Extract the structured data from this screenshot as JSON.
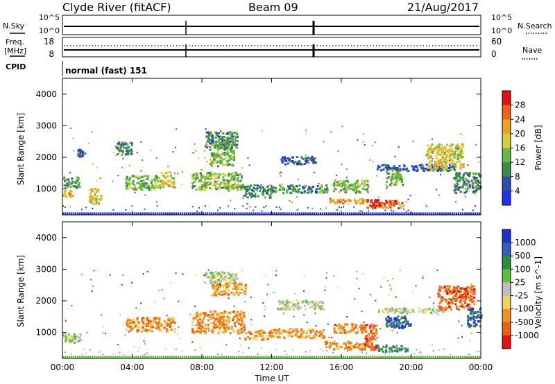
{
  "header": {
    "station": "Clyde River (fitACF)",
    "beam": "Beam 09",
    "date": "21/Aug/2017"
  },
  "status_panels": {
    "nsky_label": "N.Sky",
    "nsky_ticks": [
      "10^5",
      "10^0"
    ],
    "nsearch_label": "N.Search",
    "nsearch_ticks": [
      "10^5",
      "10^0"
    ],
    "freq_label": "Freq.",
    "freq_unit": "[MHz]",
    "freq_ticks": [
      "18",
      "8"
    ],
    "nave_label": "Nave",
    "nave_ticks": [
      "60",
      "0"
    ],
    "cpid_label": "CPID",
    "cpid_value": "normal (fast) 151"
  },
  "chart_data": [
    {
      "type": "heatmap",
      "name": "power",
      "ylabel": "Slant Range [km]",
      "ylim": [
        180,
        4500
      ],
      "yticks": [
        1000,
        2000,
        3000,
        4000
      ],
      "xlim": [
        0,
        24
      ],
      "colorbar_label": "Power [dB]",
      "colorbar_ticks": [
        "4",
        "8",
        "12",
        "16",
        "20",
        "24",
        "28"
      ],
      "colors": [
        "#1f2ff5",
        "#2a4fb0",
        "#3d8a4a",
        "#68b843",
        "#d7cf3a",
        "#f0a020",
        "#f06010",
        "#e21010"
      ],
      "regions": [
        {
          "t0": 0.0,
          "t1": 0.6,
          "r0": 780,
          "r1": 1000,
          "level": 5
        },
        {
          "t0": 0.0,
          "t1": 1.0,
          "r0": 1050,
          "r1": 1400,
          "level": 2
        },
        {
          "t0": 0.8,
          "t1": 1.3,
          "r0": 2050,
          "r1": 2300,
          "level": 1
        },
        {
          "t0": 1.5,
          "t1": 2.2,
          "r0": 550,
          "r1": 1050,
          "level": 4
        },
        {
          "t0": 3.0,
          "t1": 4.0,
          "r0": 2100,
          "r1": 2500,
          "level": 2
        },
        {
          "t0": 3.6,
          "t1": 5.6,
          "r0": 1000,
          "r1": 1450,
          "level": 3
        },
        {
          "t0": 5.6,
          "t1": 6.4,
          "r0": 1080,
          "r1": 1560,
          "level": 4
        },
        {
          "t0": 7.4,
          "t1": 10.3,
          "r0": 1000,
          "r1": 1550,
          "level": 3
        },
        {
          "t0": 8.4,
          "t1": 9.8,
          "r0": 1750,
          "r1": 2550,
          "level": 3
        },
        {
          "t0": 8.2,
          "t1": 10.0,
          "r0": 2300,
          "r1": 2850,
          "level": 2
        },
        {
          "t0": 10.3,
          "t1": 12.0,
          "r0": 750,
          "r1": 1150,
          "level": 2
        },
        {
          "t0": 12.5,
          "t1": 14.5,
          "r0": 1800,
          "r1": 2050,
          "level": 1
        },
        {
          "t0": 12.0,
          "t1": 15.2,
          "r0": 900,
          "r1": 1150,
          "level": 2
        },
        {
          "t0": 15.2,
          "t1": 17.5,
          "r0": 560,
          "r1": 720,
          "level": 5
        },
        {
          "t0": 15.5,
          "t1": 17.5,
          "r0": 900,
          "r1": 1300,
          "level": 3
        },
        {
          "t0": 17.8,
          "t1": 19.5,
          "r0": 420,
          "r1": 660,
          "level": 6
        },
        {
          "t0": 17.3,
          "t1": 18.2,
          "r0": 420,
          "r1": 700,
          "level": 7
        },
        {
          "t0": 18.5,
          "t1": 19.5,
          "r0": 1150,
          "r1": 1700,
          "level": 3
        },
        {
          "t0": 18.0,
          "t1": 22.5,
          "r0": 1600,
          "r1": 1800,
          "level": 1
        },
        {
          "t0": 20.8,
          "t1": 23.0,
          "r0": 1650,
          "r1": 2450,
          "level": 4
        },
        {
          "t0": 22.4,
          "t1": 24.0,
          "r0": 900,
          "r1": 1550,
          "level": 2
        }
      ]
    },
    {
      "type": "heatmap",
      "name": "velocity",
      "ylabel": "Slant Range [km]",
      "ylim": [
        180,
        4500
      ],
      "yticks": [
        1000,
        2000,
        3000,
        4000
      ],
      "xlim": [
        0,
        24
      ],
      "xticks": [
        "00:00",
        "04:00",
        "08:00",
        "12:00",
        "16:00",
        "20:00",
        "00:00"
      ],
      "xlabel": "Time UT",
      "colorbar_label": "Velocity [m s^-1]",
      "colorbar_ticks": [
        "1000",
        "500",
        "100",
        "25",
        "-25",
        "-100",
        "-500",
        "-1000"
      ],
      "colors": [
        "#1f2fd0",
        "#2f5fb8",
        "#2e8a3c",
        "#5cc03c",
        "#bebebe",
        "#f0d060",
        "#f09020",
        "#f06010",
        "#e81010"
      ],
      "regions": [
        {
          "t0": 0.0,
          "t1": 1.0,
          "r0": 700,
          "r1": 1000,
          "level": 4
        },
        {
          "t0": 3.6,
          "t1": 6.4,
          "r0": 1050,
          "r1": 1500,
          "level": 6
        },
        {
          "t0": 7.4,
          "t1": 10.4,
          "r0": 1000,
          "r1": 1700,
          "level": 6
        },
        {
          "t0": 8.5,
          "t1": 10.5,
          "r0": 2200,
          "r1": 2600,
          "level": 6
        },
        {
          "t0": 8.0,
          "t1": 10.0,
          "r0": 2600,
          "r1": 2950,
          "level": 4
        },
        {
          "t0": 10.4,
          "t1": 12.0,
          "r0": 800,
          "r1": 1100,
          "level": 6
        },
        {
          "t0": 12.3,
          "t1": 15.0,
          "r0": 1750,
          "r1": 2050,
          "level": 4
        },
        {
          "t0": 12.0,
          "t1": 15.0,
          "r0": 850,
          "r1": 1150,
          "level": 6
        },
        {
          "t0": 15.0,
          "t1": 17.4,
          "r0": 480,
          "r1": 760,
          "level": 6
        },
        {
          "t0": 15.5,
          "t1": 17.3,
          "r0": 1000,
          "r1": 1300,
          "level": 6
        },
        {
          "t0": 17.3,
          "t1": 18.0,
          "r0": 450,
          "r1": 1300,
          "level": 7
        },
        {
          "t0": 18.0,
          "t1": 19.8,
          "r0": 420,
          "r1": 620,
          "level": 2
        },
        {
          "t0": 18.5,
          "t1": 20.0,
          "r0": 1150,
          "r1": 1550,
          "level": 1
        },
        {
          "t0": 18.0,
          "t1": 22.0,
          "r0": 1650,
          "r1": 1800,
          "level": 4
        },
        {
          "t0": 21.5,
          "t1": 23.6,
          "r0": 1750,
          "r1": 2500,
          "level": 7
        },
        {
          "t0": 23.2,
          "t1": 24.0,
          "r0": 1200,
          "r1": 1800,
          "level": 1
        }
      ]
    }
  ]
}
